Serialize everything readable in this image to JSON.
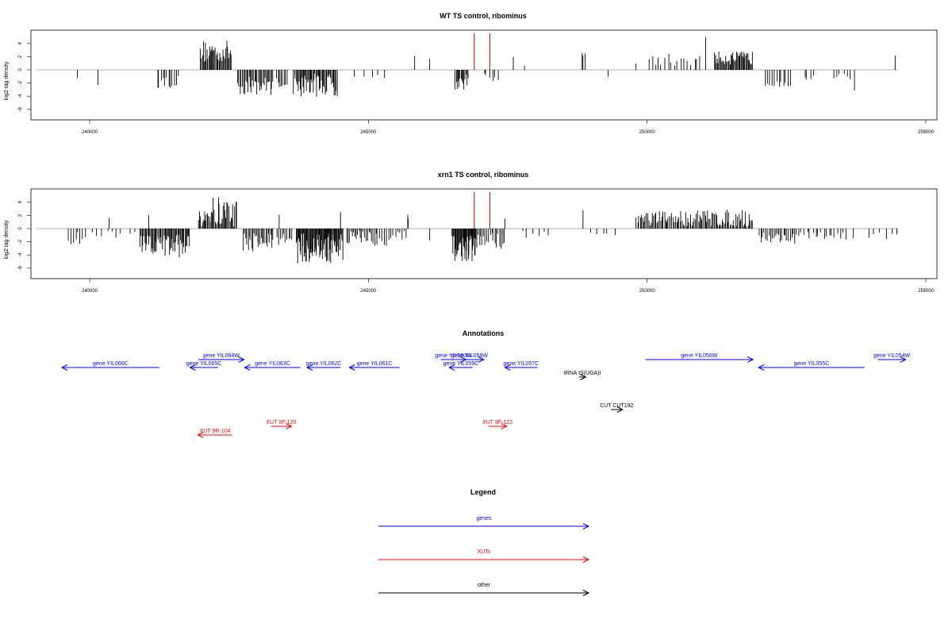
{
  "colors": {
    "gene": "#0000ff",
    "xut": "#ff0000",
    "other": "#000000",
    "bar": "#000000",
    "baseline": "#888888",
    "marker": "#d01010"
  },
  "chart_data": [
    {
      "type": "bar",
      "title": "WT TS control, ribominus",
      "ylabel": "log2 tag density",
      "xlim": [
        239500,
        254700
      ],
      "ylim": [
        -6,
        5
      ],
      "x_ticks": [
        "240000",
        "245000",
        "250000",
        "255000"
      ],
      "y_ticks": [
        "4",
        "2",
        "0",
        "-2",
        "-4",
        "-6"
      ],
      "markers": [
        246900,
        247180
      ],
      "segments": [
        {
          "from": 239780,
          "to": 239800,
          "base": -1.0,
          "amp": 0.3,
          "n": 1
        },
        {
          "from": 240150,
          "to": 240170,
          "base": -2.5,
          "amp": 0.3,
          "n": 1
        },
        {
          "from": 241200,
          "to": 241600,
          "base": -1.8,
          "amp": 1.0,
          "n": 12
        },
        {
          "from": 241980,
          "to": 242550,
          "base": 2.8,
          "amp": 1.7,
          "n": 34
        },
        {
          "from": 242650,
          "to": 243300,
          "base": -2.4,
          "amp": 1.4,
          "n": 32
        },
        {
          "from": 243350,
          "to": 243550,
          "base": -2.0,
          "amp": 0.8,
          "n": 8
        },
        {
          "from": 243650,
          "to": 244450,
          "base": -2.3,
          "amp": 1.8,
          "n": 48
        },
        {
          "from": 244700,
          "to": 245400,
          "base": -1.0,
          "amp": 0.4,
          "n": 5
        },
        {
          "from": 245830,
          "to": 245850,
          "base": 2.1,
          "amp": 0.2,
          "n": 1
        },
        {
          "from": 246100,
          "to": 246120,
          "base": 1.6,
          "amp": 0.2,
          "n": 1
        },
        {
          "from": 246550,
          "to": 246800,
          "base": -1.9,
          "amp": 1.2,
          "n": 14
        },
        {
          "from": 247050,
          "to": 247350,
          "base": -1.1,
          "amp": 0.6,
          "n": 6
        },
        {
          "from": 247600,
          "to": 247620,
          "base": 1.8,
          "amp": 0.2,
          "n": 1
        },
        {
          "from": 247800,
          "to": 247820,
          "base": 0.8,
          "amp": 0.2,
          "n": 1
        },
        {
          "from": 248820,
          "to": 248900,
          "base": 2.3,
          "amp": 0.3,
          "n": 3
        },
        {
          "from": 249300,
          "to": 249320,
          "base": -1.0,
          "amp": 0.2,
          "n": 1
        },
        {
          "from": 249800,
          "to": 249820,
          "base": 1.0,
          "amp": 0.2,
          "n": 1
        },
        {
          "from": 250000,
          "to": 250700,
          "base": 1.5,
          "amp": 1.0,
          "n": 12
        },
        {
          "from": 250700,
          "to": 251000,
          "base": 1.5,
          "amp": 0.9,
          "n": 5
        },
        {
          "from": 251050,
          "to": 251070,
          "base": 5.0,
          "amp": 0.1,
          "n": 1
        },
        {
          "from": 251200,
          "to": 251900,
          "base": 1.8,
          "amp": 1.0,
          "n": 42
        },
        {
          "from": 252100,
          "to": 252600,
          "base": -1.6,
          "amp": 1.0,
          "n": 12
        },
        {
          "from": 252800,
          "to": 253000,
          "base": -1.2,
          "amp": 0.5,
          "n": 4
        },
        {
          "from": 253300,
          "to": 253700,
          "base": -1.2,
          "amp": 0.6,
          "n": 6
        },
        {
          "from": 253720,
          "to": 253740,
          "base": -3.3,
          "amp": 0.2,
          "n": 1
        },
        {
          "from": 254450,
          "to": 254470,
          "base": 2.2,
          "amp": 0.2,
          "n": 1
        }
      ]
    },
    {
      "type": "bar",
      "title": "xrn1 TS control, ribominus",
      "ylabel": "log2 tag density",
      "xlim": [
        239500,
        254700
      ],
      "ylim": [
        -6,
        5
      ],
      "x_ticks": [
        "240000",
        "245000",
        "250000",
        "255000"
      ],
      "y_ticks": [
        "4",
        "2",
        "0",
        "-2",
        "-4",
        "-6"
      ],
      "markers": [
        246900,
        247180
      ],
      "segments": [
        {
          "from": 239600,
          "to": 239900,
          "base": -1.5,
          "amp": 1.0,
          "n": 7
        },
        {
          "from": 239900,
          "to": 240450,
          "base": -0.8,
          "amp": 0.9,
          "n": 6
        },
        {
          "from": 240350,
          "to": 240370,
          "base": 1.7,
          "amp": 0.2,
          "n": 1
        },
        {
          "from": 240450,
          "to": 240850,
          "base": -1.0,
          "amp": 0.6,
          "n": 4
        },
        {
          "from": 240900,
          "to": 241800,
          "base": -2.6,
          "amp": 1.8,
          "n": 55
        },
        {
          "from": 241060,
          "to": 241080,
          "base": 2.0,
          "amp": 0.2,
          "n": 1
        },
        {
          "from": 241950,
          "to": 242650,
          "base": 2.5,
          "amp": 2.4,
          "n": 40
        },
        {
          "from": 242750,
          "to": 243300,
          "base": -2.0,
          "amp": 1.5,
          "n": 26
        },
        {
          "from": 243400,
          "to": 243420,
          "base": 2.0,
          "amp": 0.2,
          "n": 1
        },
        {
          "from": 243350,
          "to": 243650,
          "base": -1.6,
          "amp": 0.9,
          "n": 10
        },
        {
          "from": 243700,
          "to": 244550,
          "base": -3.0,
          "amp": 2.3,
          "n": 70
        },
        {
          "from": 244500,
          "to": 244520,
          "base": 2.4,
          "amp": 0.2,
          "n": 1
        },
        {
          "from": 244600,
          "to": 245150,
          "base": -1.4,
          "amp": 1.3,
          "n": 22
        },
        {
          "from": 245150,
          "to": 245700,
          "base": -1.4,
          "amp": 1.2,
          "n": 14
        },
        {
          "from": 245700,
          "to": 245720,
          "base": 1.8,
          "amp": 0.3,
          "n": 2
        },
        {
          "from": 246100,
          "to": 246120,
          "base": -1.8,
          "amp": 0.2,
          "n": 1
        },
        {
          "from": 246500,
          "to": 246950,
          "base": -3.0,
          "amp": 2.0,
          "n": 38
        },
        {
          "from": 246950,
          "to": 247450,
          "base": -1.8,
          "amp": 1.3,
          "n": 18
        },
        {
          "from": 247450,
          "to": 247470,
          "base": 1.5,
          "amp": 0.2,
          "n": 1
        },
        {
          "from": 247700,
          "to": 248300,
          "base": -0.9,
          "amp": 0.6,
          "n": 6
        },
        {
          "from": 248850,
          "to": 248870,
          "base": 3.0,
          "amp": 0.2,
          "n": 1
        },
        {
          "from": 248900,
          "to": 249500,
          "base": -0.9,
          "amp": 0.5,
          "n": 5
        },
        {
          "from": 249800,
          "to": 250500,
          "base": 1.5,
          "amp": 1.2,
          "n": 32
        },
        {
          "from": 250500,
          "to": 251900,
          "base": 1.6,
          "amp": 1.3,
          "n": 70
        },
        {
          "from": 252000,
          "to": 252700,
          "base": -1.4,
          "amp": 0.9,
          "n": 24
        },
        {
          "from": 252700,
          "to": 253600,
          "base": -1.1,
          "amp": 0.6,
          "n": 18
        },
        {
          "from": 253700,
          "to": 253720,
          "base": -1.5,
          "amp": 0.2,
          "n": 1
        },
        {
          "from": 253900,
          "to": 254550,
          "base": -1.0,
          "amp": 0.6,
          "n": 6
        }
      ]
    }
  ],
  "annotations": {
    "title": "Annotations",
    "features": [
      {
        "label": "gene YIL066C",
        "kind": "gene",
        "start": 239500,
        "end": 241250,
        "strand": "-",
        "row": 1
      },
      {
        "label": "gene YIL065C",
        "kind": "gene",
        "start": 241800,
        "end": 242300,
        "strand": "-",
        "row": 1
      },
      {
        "label": "gene YIL064W",
        "kind": "gene",
        "start": 241950,
        "end": 242770,
        "strand": "+",
        "row": 0
      },
      {
        "label": "gene YIL063C",
        "kind": "gene",
        "start": 242780,
        "end": 243780,
        "strand": "-",
        "row": 1
      },
      {
        "label": "gene YIL062C",
        "kind": "gene",
        "start": 243900,
        "end": 244500,
        "strand": "-",
        "row": 1
      },
      {
        "label": "gene YIL061C",
        "kind": "gene",
        "start": 244660,
        "end": 245560,
        "strand": "-",
        "row": 1
      },
      {
        "label": "gene YIL060W",
        "kind": "gene",
        "start": 246300,
        "end": 246750,
        "strand": "+",
        "row": 0
      },
      {
        "label": "gene YIL058W",
        "kind": "gene",
        "start": 246560,
        "end": 247070,
        "strand": "+",
        "row": 0
      },
      {
        "label": "gene YIL059C",
        "kind": "gene",
        "start": 246450,
        "end": 246870,
        "strand": "-",
        "row": 1
      },
      {
        "label": "gene YIL057C",
        "kind": "gene",
        "start": 247450,
        "end": 248030,
        "strand": "-",
        "row": 1
      },
      {
        "label": "tRNA tS(UGA)I",
        "kind": "other",
        "start": 248780,
        "end": 248900,
        "strand": "+",
        "row": 2
      },
      {
        "label": "gene YIL056W",
        "kind": "gene",
        "start": 249970,
        "end": 251900,
        "strand": "+",
        "row": 0
      },
      {
        "label": "gene YIL055C",
        "kind": "gene",
        "start": 252000,
        "end": 253900,
        "strand": "-",
        "row": 1
      },
      {
        "label": "gene YIL054W",
        "kind": "gene",
        "start": 254140,
        "end": 254640,
        "strand": "+",
        "row": 0
      },
      {
        "label": "CUT CUT192",
        "kind": "other",
        "start": 249350,
        "end": 249560,
        "strand": "+",
        "row": 3
      },
      {
        "label": "XUT 9F-120",
        "kind": "xut",
        "start": 243250,
        "end": 243620,
        "strand": "+",
        "row": 4
      },
      {
        "label": "XUT 9F-122",
        "kind": "xut",
        "start": 247150,
        "end": 247480,
        "strand": "+",
        "row": 4
      },
      {
        "label": "XUT 9R-104",
        "kind": "xut",
        "start": 241940,
        "end": 242560,
        "strand": "-",
        "row": 5
      }
    ]
  },
  "legend": {
    "title": "Legend",
    "items": [
      {
        "label": "genes",
        "kind": "gene"
      },
      {
        "label": "XUTs",
        "kind": "xut"
      },
      {
        "label": "other",
        "kind": "other"
      }
    ]
  }
}
